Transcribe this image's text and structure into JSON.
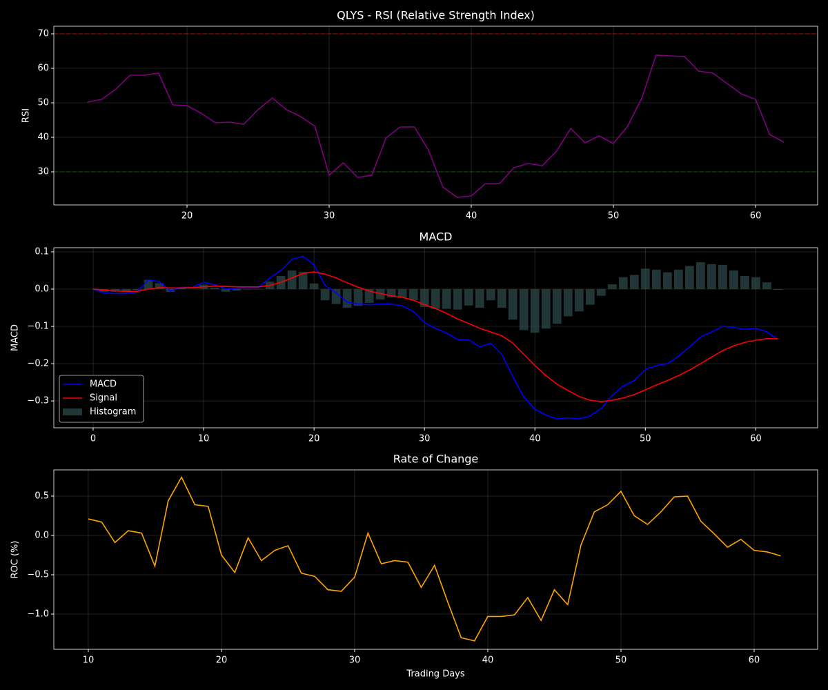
{
  "chart_data": [
    {
      "type": "line",
      "title": "QLYS - RSI (Relative Strength Index)",
      "ylabel": "RSI",
      "x": [
        13,
        14,
        15,
        16,
        17,
        18,
        19,
        20,
        21,
        22,
        23,
        24,
        25,
        26,
        27,
        28,
        29,
        30,
        31,
        32,
        33,
        34,
        35,
        36,
        37,
        38,
        39,
        40,
        41,
        42,
        43,
        44,
        45,
        46,
        47,
        48,
        49,
        50,
        51,
        52,
        53,
        54,
        55,
        56,
        57,
        58,
        59,
        60,
        61,
        62
      ],
      "series": [
        {
          "name": "RSI",
          "color": "#800080",
          "values": [
            50.2,
            51,
            54,
            58,
            58,
            58.6,
            49.4,
            49.2,
            47,
            44.2,
            44.4,
            43.8,
            48,
            51.4,
            48,
            46,
            43.2,
            29,
            32.6,
            28.4,
            29,
            39.8,
            43,
            43,
            36.2,
            25.6,
            22.6,
            23,
            26.6,
            26.6,
            31.2,
            32.4,
            31.8,
            36,
            42.6,
            38.4,
            40.4,
            38.2,
            43.2,
            51.4,
            63.8,
            63.6,
            63.4,
            59.2,
            58.6,
            55.6,
            52.6,
            51,
            40.8,
            38.6
          ]
        }
      ],
      "hlines": [
        {
          "value": 70,
          "color": "#ff0000"
        },
        {
          "value": 30,
          "color": "#008000"
        }
      ],
      "xlim": [
        10.63,
        64.37
      ],
      "xticks": [
        20,
        30,
        40,
        50,
        60
      ],
      "ylim": [
        20.4,
        72.2
      ],
      "yticks": [
        30,
        40,
        50,
        60,
        70
      ],
      "grid": true
    },
    {
      "type": "line",
      "title": "MACD",
      "ylabel": "MACD",
      "x": [
        0,
        1,
        2,
        3,
        4,
        5,
        6,
        7,
        8,
        9,
        10,
        11,
        12,
        13,
        14,
        15,
        16,
        17,
        18,
        19,
        20,
        21,
        22,
        23,
        24,
        25,
        26,
        27,
        28,
        29,
        30,
        31,
        32,
        33,
        34,
        35,
        36,
        37,
        38,
        39,
        40,
        41,
        42,
        43,
        44,
        45,
        46,
        47,
        48,
        49,
        50,
        51,
        52,
        53,
        54,
        55,
        56,
        57,
        58,
        59,
        60,
        61,
        62
      ],
      "series": [
        {
          "name": "Histogram",
          "type": "bar",
          "color": "#2f4f4f",
          "values": [
            0,
            -0.007,
            -0.007,
            -0.006,
            -0.002,
            0.025,
            0.016,
            -0.008,
            0.002,
            0.001,
            0.012,
            0.004,
            -0.007,
            -0.004,
            -0.001,
            -0.001,
            0.02,
            0.035,
            0.05,
            0.046,
            0.015,
            -0.03,
            -0.04,
            -0.05,
            -0.045,
            -0.037,
            -0.028,
            -0.022,
            -0.023,
            -0.03,
            -0.048,
            -0.053,
            -0.053,
            -0.055,
            -0.044,
            -0.05,
            -0.03,
            -0.05,
            -0.082,
            -0.11,
            -0.117,
            -0.106,
            -0.093,
            -0.073,
            -0.06,
            -0.042,
            -0.018,
            0.013,
            0.032,
            0.038,
            0.055,
            0.052,
            0.045,
            0.052,
            0.062,
            0.072,
            0.067,
            0.065,
            0.05,
            0.035,
            0.032,
            0.018,
            -0.002
          ]
        },
        {
          "name": "MACD",
          "color": "#0000ff",
          "values": [
            0,
            -0.01,
            -0.012,
            -0.012,
            -0.008,
            0.025,
            0.02,
            -0.005,
            0.005,
            0.005,
            0.018,
            0.012,
            0,
            0.002,
            0.005,
            0.005,
            0.03,
            0.05,
            0.08,
            0.088,
            0.065,
            0.01,
            -0.01,
            -0.035,
            -0.04,
            -0.042,
            -0.04,
            -0.04,
            -0.045,
            -0.06,
            -0.09,
            -0.105,
            -0.118,
            -0.135,
            -0.136,
            -0.155,
            -0.145,
            -0.175,
            -0.235,
            -0.29,
            -0.322,
            -0.338,
            -0.348,
            -0.345,
            -0.348,
            -0.34,
            -0.32,
            -0.285,
            -0.26,
            -0.245,
            -0.215,
            -0.205,
            -0.2,
            -0.18,
            -0.155,
            -0.128,
            -0.115,
            -0.1,
            -0.103,
            -0.108,
            -0.105,
            -0.115,
            -0.135
          ]
        },
        {
          "name": "Signal",
          "color": "#ff0000",
          "values": [
            0,
            -0.003,
            -0.005,
            -0.006,
            -0.006,
            0,
            0.004,
            0.003,
            0.003,
            0.004,
            0.006,
            0.008,
            0.007,
            0.006,
            0.006,
            0.006,
            0.01,
            0.018,
            0.03,
            0.042,
            0.046,
            0.04,
            0.03,
            0.017,
            0.005,
            -0.005,
            -0.012,
            -0.018,
            -0.022,
            -0.03,
            -0.042,
            -0.052,
            -0.065,
            -0.08,
            -0.092,
            -0.105,
            -0.115,
            -0.125,
            -0.145,
            -0.175,
            -0.205,
            -0.232,
            -0.255,
            -0.272,
            -0.288,
            -0.298,
            -0.302,
            -0.298,
            -0.292,
            -0.283,
            -0.27,
            -0.257,
            -0.245,
            -0.232,
            -0.217,
            -0.2,
            -0.182,
            -0.165,
            -0.152,
            -0.143,
            -0.137,
            -0.133,
            -0.133
          ]
        }
      ],
      "legend": "lower left",
      "xlim": [
        -3.56,
        65.6
      ],
      "xticks": [
        0,
        10,
        20,
        30,
        40,
        50,
        60
      ],
      "ylim": [
        -0.372,
        0.111
      ],
      "yticks": [
        0.1,
        {
          "value": 0,
          "label": "0.0"
        },
        {
          "value": -0.1,
          "label": "−0.1"
        },
        {
          "value": -0.2,
          "label": "−0.2"
        },
        {
          "value": -0.3,
          "label": "−0.3"
        }
      ],
      "grid": true
    },
    {
      "type": "line",
      "title": "Rate of Change",
      "ylabel": "ROC (%)",
      "xlabel": "Trading Days",
      "x": [
        10,
        11,
        12,
        13,
        14,
        15,
        16,
        17,
        18,
        19,
        20,
        21,
        22,
        23,
        24,
        25,
        26,
        27,
        28,
        29,
        30,
        31,
        32,
        33,
        34,
        35,
        36,
        37,
        38,
        39,
        40,
        41,
        42,
        43,
        44,
        45,
        46,
        47,
        48,
        49,
        50,
        51,
        52,
        53,
        54,
        55,
        56,
        57,
        58,
        59,
        60,
        61,
        62
      ],
      "series": [
        {
          "name": "ROC",
          "color": "#ffa500",
          "values": [
            0.21,
            0.17,
            -0.09,
            0.06,
            0.03,
            -0.39,
            0.44,
            0.74,
            0.39,
            0.37,
            -0.25,
            -0.47,
            -0.03,
            -0.32,
            -0.19,
            -0.13,
            -0.48,
            -0.52,
            -0.69,
            -0.71,
            -0.53,
            0.03,
            -0.36,
            -0.32,
            -0.34,
            -0.66,
            -0.38,
            -0.85,
            -1.3,
            -1.34,
            -1.03,
            -1.03,
            -1.01,
            -0.79,
            -1.08,
            -0.69,
            -0.88,
            -0.12,
            0.3,
            0.39,
            0.56,
            0.25,
            0.14,
            0.3,
            0.49,
            0.5,
            0.18,
            0.02,
            -0.15,
            -0.05,
            -0.19,
            -0.21,
            -0.26
          ]
        }
      ],
      "xlim": [
        7.41,
        64.77
      ],
      "xticks": [
        10,
        20,
        30,
        40,
        50,
        60
      ],
      "ylim": [
        -1.447,
        0.833
      ],
      "yticks": [
        0.5,
        {
          "value": 0,
          "label": "0.0"
        },
        {
          "value": -0.5,
          "label": "−0.5"
        },
        {
          "value": -1,
          "label": "−1.0"
        }
      ],
      "grid": true
    }
  ]
}
